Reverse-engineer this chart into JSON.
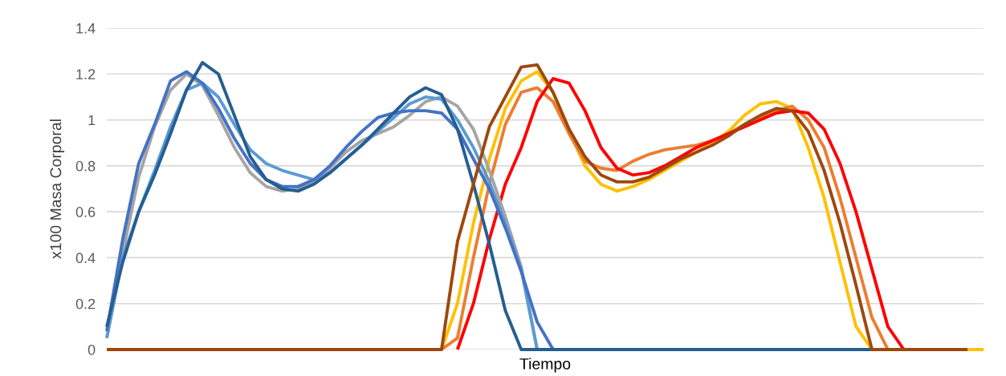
{
  "chart_data": {
    "type": "line",
    "xlabel": "Tiempo",
    "ylabel": "x100 Masa Corporal",
    "categories": [
      null,
      null,
      null,
      null,
      null,
      null,
      null,
      null,
      null,
      null,
      null,
      null,
      null,
      null,
      null,
      null,
      null,
      null,
      null,
      null,
      null,
      null,
      null,
      null,
      null,
      null,
      null,
      null,
      null,
      null,
      null,
      null,
      null,
      null,
      null,
      null,
      null,
      null,
      null,
      null,
      null,
      null,
      null,
      null,
      null,
      null,
      null,
      null,
      null,
      null,
      null,
      null,
      null,
      null,
      null,
      null
    ],
    "ylim": [
      0,
      1.4
    ],
    "yticks": [
      0,
      0.2,
      0.4,
      0.6,
      0.8,
      1,
      1.2,
      1.4
    ],
    "grid": "y",
    "marker": "none",
    "line_style": "solid",
    "series": [
      {
        "color": "#ffc000",
        "values": [
          null,
          null,
          null,
          null,
          null,
          null,
          null,
          null,
          null,
          null,
          null,
          null,
          null,
          null,
          null,
          null,
          null,
          null,
          null,
          null,
          null,
          0,
          0.2,
          0.55,
          0.83,
          1.05,
          1.17,
          1.21,
          1.12,
          0.95,
          0.8,
          0.72,
          0.69,
          0.71,
          0.74,
          0.78,
          0.82,
          0.86,
          0.9,
          0.95,
          1.02,
          1.07,
          1.08,
          1.05,
          0.88,
          0.66,
          0.38,
          0.1,
          0,
          null,
          null,
          null,
          null,
          null,
          0,
          0
        ]
      },
      {
        "color": "#ed7d31",
        "values": [
          null,
          null,
          null,
          null,
          null,
          null,
          null,
          null,
          null,
          null,
          null,
          null,
          null,
          null,
          null,
          null,
          null,
          null,
          null,
          null,
          null,
          0,
          0.05,
          0.4,
          0.72,
          0.98,
          1.12,
          1.14,
          1.08,
          0.94,
          0.82,
          0.79,
          0.78,
          0.82,
          0.85,
          0.87,
          0.88,
          0.89,
          0.91,
          0.94,
          0.98,
          1.01,
          1.04,
          1.06,
          1.0,
          0.88,
          0.66,
          0.4,
          0.14,
          0,
          null,
          null,
          null,
          null,
          null,
          null
        ]
      },
      {
        "color": "#ff0000",
        "values": [
          null,
          null,
          null,
          null,
          null,
          null,
          null,
          null,
          null,
          null,
          null,
          null,
          null,
          null,
          null,
          null,
          null,
          null,
          null,
          null,
          null,
          null,
          0,
          0.2,
          0.48,
          0.72,
          0.88,
          1.08,
          1.18,
          1.16,
          1.04,
          0.88,
          0.79,
          0.76,
          0.77,
          0.8,
          0.84,
          0.88,
          0.91,
          0.94,
          0.97,
          1.0,
          1.03,
          1.04,
          1.03,
          0.96,
          0.81,
          0.6,
          0.35,
          0.1,
          0,
          null,
          null,
          null,
          null,
          null
        ]
      },
      {
        "color": "#a5a5a5",
        "values": [
          0.05,
          0.42,
          0.75,
          0.97,
          1.13,
          1.2,
          1.15,
          1.02,
          0.88,
          0.77,
          0.71,
          0.69,
          0.7,
          0.73,
          0.79,
          0.86,
          0.91,
          0.94,
          0.97,
          1.02,
          1.08,
          1.1,
          1.06,
          0.96,
          0.78,
          0.58,
          0.36,
          0,
          null,
          null,
          null,
          null,
          null,
          null,
          null,
          null,
          null,
          null,
          null,
          null,
          null,
          null,
          null,
          null,
          null,
          null,
          null,
          null,
          null,
          null,
          null,
          null,
          null,
          null,
          null,
          null
        ]
      },
      {
        "color": "#5b9bd5",
        "values": [
          0.05,
          0.4,
          0.6,
          0.78,
          0.97,
          1.13,
          1.16,
          1.1,
          0.98,
          0.87,
          0.81,
          0.78,
          0.76,
          0.74,
          0.77,
          0.83,
          0.89,
          0.95,
          1.01,
          1.07,
          1.1,
          1.09,
          1.0,
          0.88,
          0.73,
          0.55,
          0.35,
          0,
          null,
          null,
          null,
          null,
          null,
          null,
          null,
          null,
          null,
          null,
          null,
          null,
          null,
          null,
          null,
          null,
          null,
          null,
          null,
          null,
          null,
          null,
          null,
          null,
          null,
          null,
          null,
          null
        ]
      },
      {
        "color": "#4472c4",
        "values": [
          0.08,
          0.48,
          0.81,
          0.98,
          1.17,
          1.21,
          1.16,
          1.05,
          0.92,
          0.81,
          0.74,
          0.71,
          0.71,
          0.74,
          0.8,
          0.88,
          0.95,
          1.01,
          1.03,
          1.04,
          1.04,
          1.03,
          0.96,
          0.83,
          0.7,
          0.53,
          0.34,
          0.12,
          0,
          null,
          null,
          null,
          null,
          null,
          null,
          null,
          null,
          null,
          null,
          null,
          null,
          null,
          null,
          null,
          null,
          null,
          null,
          null,
          null,
          null,
          null,
          null,
          null,
          null,
          null,
          null
        ]
      },
      {
        "color": "#255e91",
        "values": [
          0.1,
          0.38,
          0.6,
          0.76,
          0.94,
          1.13,
          1.25,
          1.2,
          1.02,
          0.84,
          0.74,
          0.7,
          0.69,
          0.72,
          0.77,
          0.83,
          0.89,
          0.96,
          1.03,
          1.1,
          1.14,
          1.11,
          0.96,
          0.72,
          0.46,
          0.17,
          0,
          0,
          0,
          0,
          0,
          0,
          0,
          0,
          0,
          0,
          0,
          0,
          0,
          0,
          0,
          0,
          0,
          0,
          0,
          0,
          0,
          0,
          0,
          null,
          null,
          null,
          null,
          null,
          null,
          null
        ]
      },
      {
        "color": "#9e480e",
        "values": [
          0,
          0,
          0,
          0,
          0,
          0,
          0,
          0,
          0,
          0,
          0,
          0,
          0,
          0,
          0,
          0,
          0,
          0,
          0,
          0,
          0,
          0,
          0.47,
          0.72,
          0.97,
          1.1,
          1.23,
          1.24,
          1.12,
          0.96,
          0.84,
          0.76,
          0.73,
          0.73,
          0.75,
          0.79,
          0.83,
          0.86,
          0.89,
          0.93,
          0.98,
          1.02,
          1.05,
          1.04,
          0.95,
          0.78,
          0.55,
          0.28,
          0,
          0,
          0,
          0,
          0,
          0,
          0,
          null
        ]
      }
    ]
  }
}
